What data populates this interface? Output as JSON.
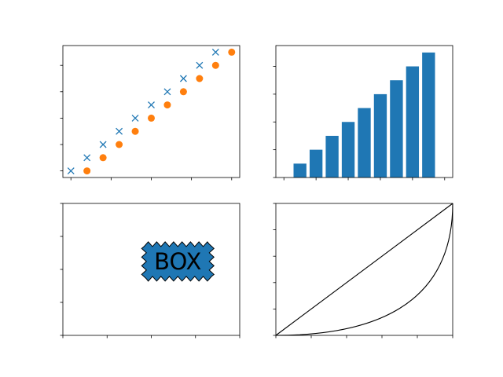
{
  "colors": {
    "blue": "#1f77b4",
    "orange": "#ff7f0e",
    "black": "#000000"
  },
  "chart_data": [
    {
      "type": "scatter",
      "position": "top-left",
      "xlim": [
        -0.5,
        10.5
      ],
      "ylim": [
        -0.5,
        9.5
      ],
      "x_ticks": [
        0,
        2.5,
        5,
        7.5,
        10
      ],
      "y_ticks": [
        0,
        2,
        4,
        6,
        8
      ],
      "grid": false,
      "series": [
        {
          "marker": "x",
          "color": "#1f77b4",
          "x": [
            0,
            1,
            2,
            3,
            4,
            5,
            6,
            7,
            8,
            9
          ],
          "y": [
            0,
            1,
            2,
            3,
            4,
            5,
            6,
            7,
            8,
            9
          ]
        },
        {
          "marker": "circle",
          "color": "#ff7f0e",
          "x": [
            1,
            2,
            3,
            4,
            5,
            6,
            7,
            8,
            9,
            10
          ],
          "y": [
            0,
            1,
            2,
            3,
            4,
            5,
            6,
            7,
            8,
            9
          ]
        }
      ]
    },
    {
      "type": "bar",
      "position": "top-right",
      "xlim": [
        -0.5,
        10.5
      ],
      "ylim": [
        0,
        9.5
      ],
      "x_ticks": [
        0,
        2,
        4,
        6,
        8,
        10
      ],
      "y_ticks": [
        0,
        2,
        4,
        6,
        8
      ],
      "grid": false,
      "color": "#1f77b4",
      "categories": [
        1,
        2,
        3,
        4,
        5,
        6,
        7,
        8,
        9
      ],
      "values": [
        1,
        2,
        3,
        4,
        5,
        6,
        7,
        8,
        9
      ]
    },
    {
      "type": "annotation",
      "position": "bottom-left",
      "xlim": [
        0,
        1
      ],
      "ylim": [
        0,
        1
      ],
      "x_ticks": [
        0,
        0.25,
        0.5,
        0.75,
        1
      ],
      "y_ticks": [
        0,
        0.25,
        0.5,
        0.75,
        1
      ],
      "grid": false,
      "box": {
        "text": "BOX",
        "x": 0.65,
        "y": 0.56,
        "style": "sawtooth",
        "facecolor": "#1f77b4",
        "edgecolor": "#000000"
      }
    },
    {
      "type": "line",
      "position": "bottom-right",
      "xlim": [
        0,
        1
      ],
      "ylim": [
        0,
        1
      ],
      "x_ticks": [
        0,
        0.2,
        0.4,
        0.6,
        0.8,
        1
      ],
      "y_ticks": [
        0,
        0.2,
        0.4,
        0.6,
        0.8,
        1
      ],
      "grid": false,
      "series": [
        {
          "curve": "straight",
          "color": "#000000",
          "from": [
            0,
            0
          ],
          "to": [
            1,
            1
          ]
        },
        {
          "curve": "arc",
          "color": "#000000",
          "from": [
            0,
            0
          ],
          "to": [
            1,
            1
          ],
          "control": [
            1,
            0
          ]
        }
      ]
    }
  ]
}
